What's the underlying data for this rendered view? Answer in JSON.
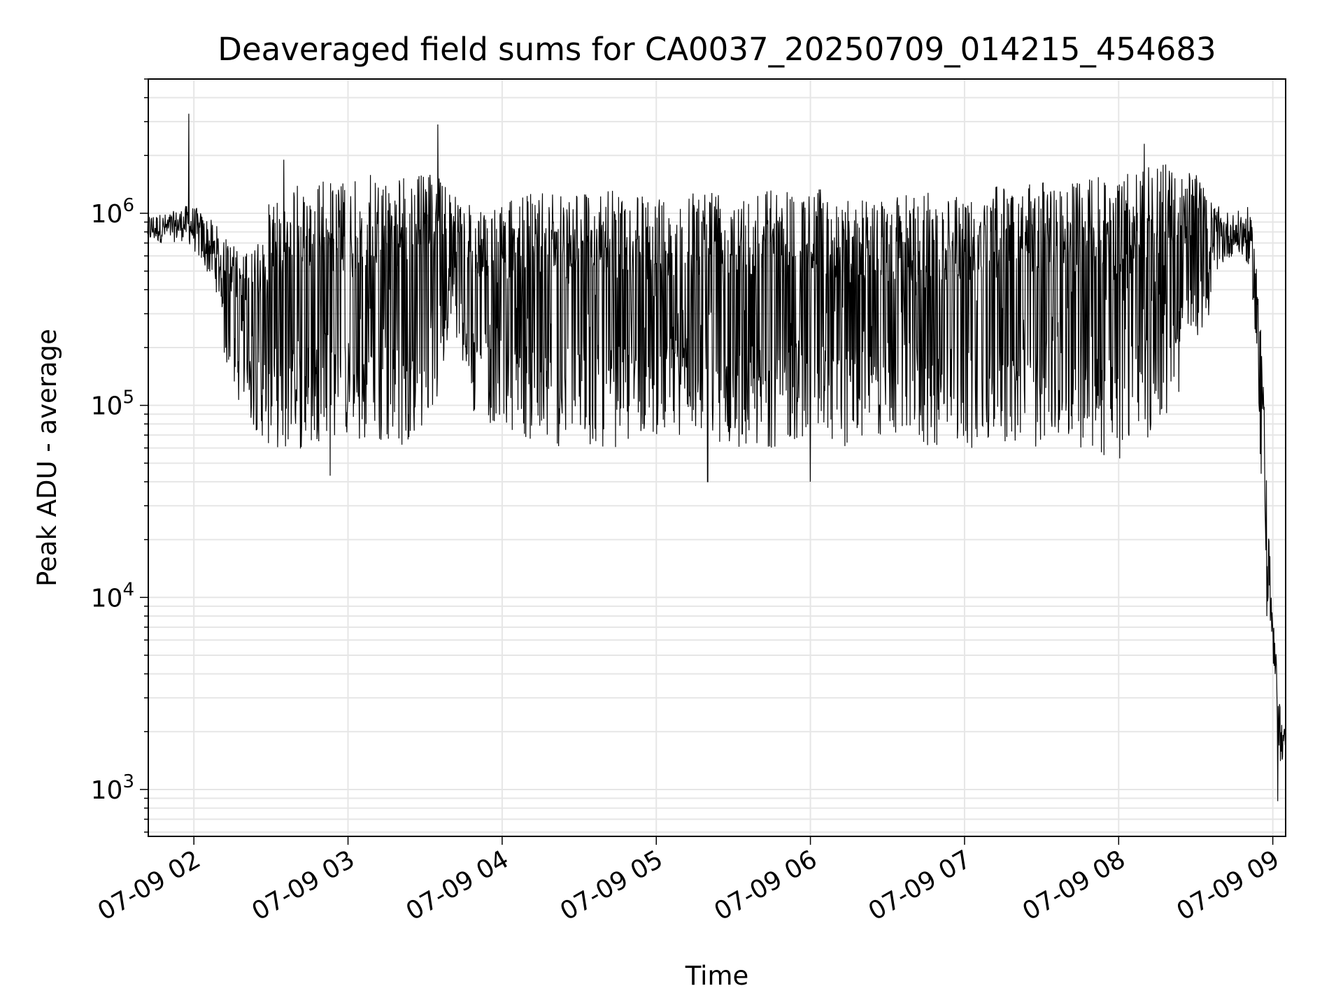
{
  "chart_data": {
    "type": "line",
    "title": "Deaveraged field sums for CA0037_20250709_014215_454683",
    "xlabel": "Time",
    "ylabel": "Peak ADU - average",
    "y_scale": "log",
    "ylim": [
      570,
      5000000
    ],
    "xlim": [
      "2025-07-09 01:42:15",
      "2025-07-09 09:05:00"
    ],
    "grid": true,
    "legend": "none",
    "line_color": "#000000",
    "grid_color": "#e6e6e6",
    "x_ticks": [
      {
        "value": "2025-07-09 02:00",
        "label": "07-09 02"
      },
      {
        "value": "2025-07-09 03:00",
        "label": "07-09 03"
      },
      {
        "value": "2025-07-09 04:00",
        "label": "07-09 04"
      },
      {
        "value": "2025-07-09 05:00",
        "label": "07-09 05"
      },
      {
        "value": "2025-07-09 06:00",
        "label": "07-09 06"
      },
      {
        "value": "2025-07-09 07:00",
        "label": "07-09 07"
      },
      {
        "value": "2025-07-09 08:00",
        "label": "07-09 08"
      },
      {
        "value": "2025-07-09 09:00",
        "label": "07-09 09"
      }
    ],
    "y_ticks": [
      {
        "value": 1000,
        "base": "10",
        "exp": "3"
      },
      {
        "value": 10000,
        "base": "10",
        "exp": "4"
      },
      {
        "value": 100000,
        "base": "10",
        "exp": "5"
      },
      {
        "value": 1000000,
        "base": "10",
        "exp": "6"
      }
    ],
    "series": [
      {
        "x": [
          "2025-07-09 01:42",
          "2025-07-09 01:50",
          "2025-07-09 01:57",
          "2025-07-09 02:00",
          "2025-07-09 02:08",
          "2025-07-09 02:15",
          "2025-07-09 02:22",
          "2025-07-09 02:30",
          "2025-07-09 02:38",
          "2025-07-09 02:45",
          "2025-07-09 02:52",
          "2025-07-09 03:00",
          "2025-07-09 03:10",
          "2025-07-09 03:20",
          "2025-07-09 03:30",
          "2025-07-09 03:35",
          "2025-07-09 03:40",
          "2025-07-09 03:50",
          "2025-07-09 04:00",
          "2025-07-09 04:15",
          "2025-07-09 04:30",
          "2025-07-09 04:45",
          "2025-07-09 05:00",
          "2025-07-09 05:15",
          "2025-07-09 05:30",
          "2025-07-09 05:45",
          "2025-07-09 06:00",
          "2025-07-09 06:15",
          "2025-07-09 06:30",
          "2025-07-09 06:45",
          "2025-07-09 07:00",
          "2025-07-09 07:15",
          "2025-07-09 07:30",
          "2025-07-09 07:45",
          "2025-07-09 08:00",
          "2025-07-09 08:10",
          "2025-07-09 08:20",
          "2025-07-09 08:30",
          "2025-07-09 08:38",
          "2025-07-09 08:45",
          "2025-07-09 08:50",
          "2025-07-09 08:53",
          "2025-07-09 08:55",
          "2025-07-09 08:57",
          "2025-07-09 08:58",
          "2025-07-09 09:00",
          "2025-07-09 09:02",
          "2025-07-09 09:03",
          "2025-07-09 09:05"
        ],
        "low": [
          600000,
          600000,
          600000,
          500000,
          300000,
          120000,
          80000,
          60000,
          55000,
          60000,
          70000,
          65000,
          60000,
          60000,
          80000,
          100000,
          300000,
          80000,
          80000,
          60000,
          60000,
          60000,
          70000,
          70000,
          60000,
          60000,
          70000,
          60000,
          70000,
          60000,
          60000,
          60000,
          60000,
          60000,
          50000,
          60000,
          80000,
          200000,
          350000,
          500000,
          400000,
          200000,
          50000,
          15000,
          5000,
          3500,
          1500,
          1000,
          1500
        ],
        "high": [
          1000000,
          1000000,
          1100000,
          1100000,
          900000,
          700000,
          600000,
          1200000,
          1400000,
          1500000,
          1500000,
          1500000,
          1600000,
          1600000,
          1600000,
          1700000,
          1500000,
          1000000,
          1100000,
          1400000,
          1400000,
          1300000,
          1200000,
          1400000,
          1400000,
          1400000,
          1400000,
          1200000,
          1200000,
          1300000,
          1300000,
          1400000,
          1500000,
          1500000,
          1600000,
          1800000,
          1800000,
          1600000,
          1100000,
          1000000,
          1100000,
          800000,
          300000,
          100000,
          30000,
          8000,
          4000,
          2500,
          2000
        ],
        "spikes": [
          {
            "x": "2025-07-09 01:58",
            "y": 3300000
          },
          {
            "x": "2025-07-09 03:35",
            "y": 2900000
          },
          {
            "x": "2025-07-09 08:10",
            "y": 2300000
          },
          {
            "x": "2025-07-09 02:35",
            "y": 1900000
          },
          {
            "x": "2025-07-09 02:53",
            "y": 43000
          },
          {
            "x": "2025-07-09 05:20",
            "y": 40000
          },
          {
            "x": "2025-07-09 06:00",
            "y": 40000
          },
          {
            "x": "2025-07-09 09:02",
            "y": 870
          }
        ]
      }
    ]
  }
}
